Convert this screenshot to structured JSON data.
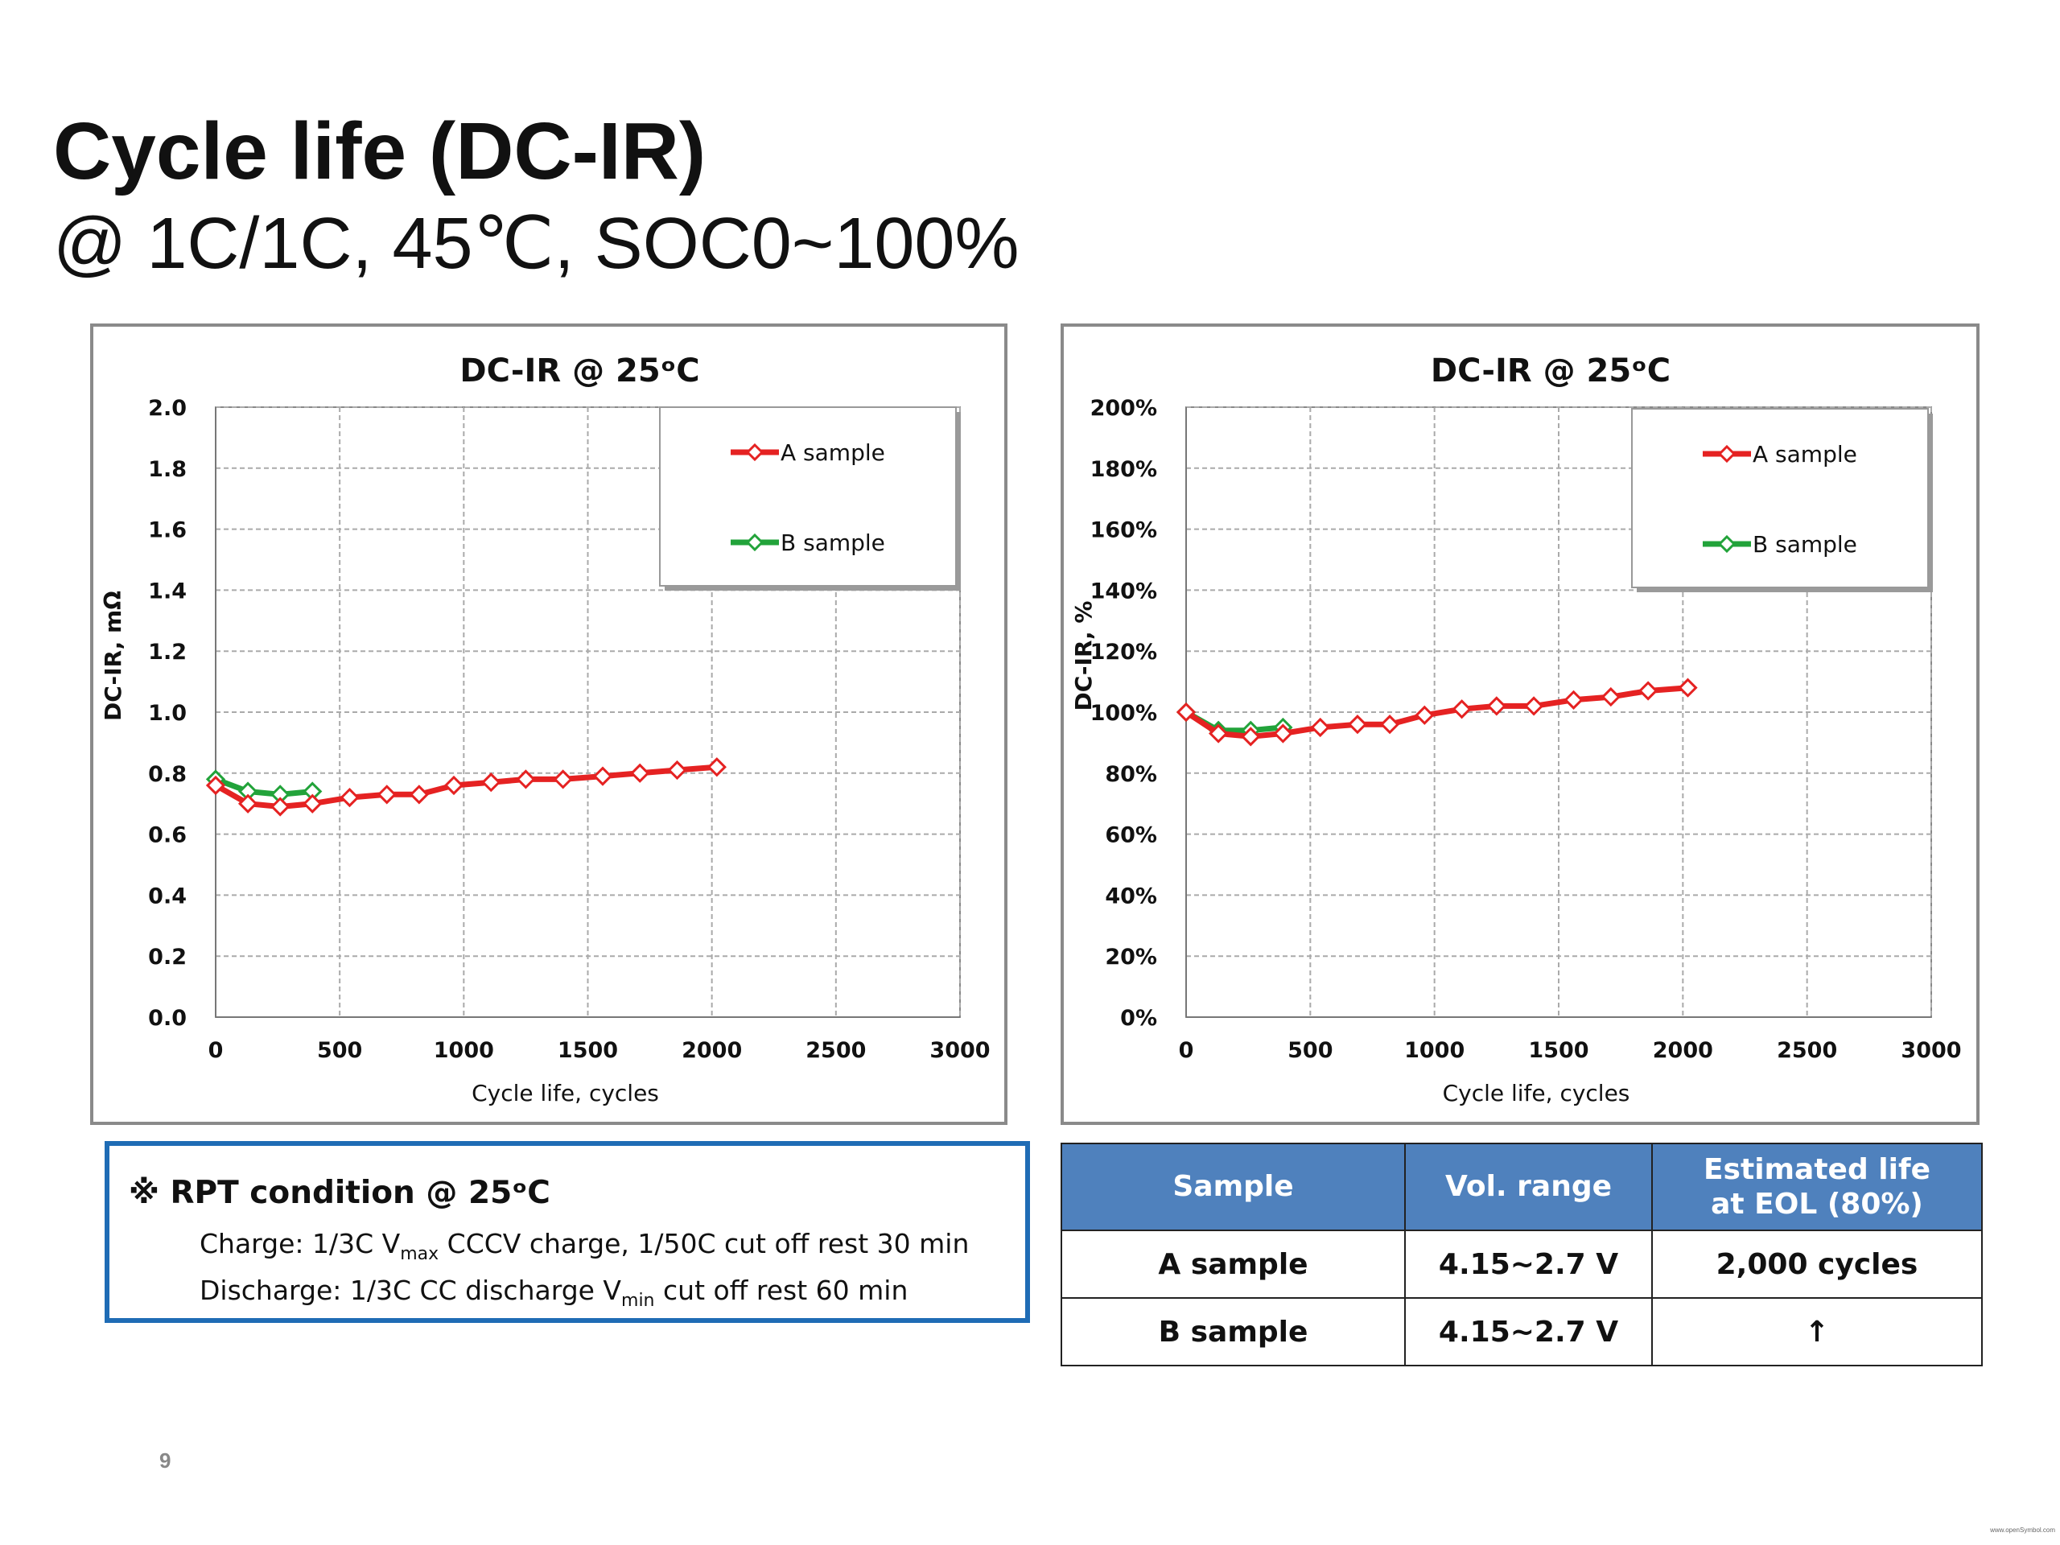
{
  "title": "Cycle life (DC-IR)",
  "subtitle": "@ 1C/1C, 45℃, SOC0~100%",
  "chart_data": [
    {
      "type": "line",
      "title": "DC-IR @ 25ᵒC",
      "xlabel": "Cycle life, cycles",
      "ylabel": "DC-IR, mΩ",
      "xlim": [
        0,
        3000
      ],
      "ylim": [
        0,
        2.0
      ],
      "xticks": [
        0,
        500,
        1000,
        1500,
        2000,
        2500,
        3000
      ],
      "xtick_labels": [
        "0",
        "500",
        "1000",
        "1500",
        "2000",
        "2500",
        "3000"
      ],
      "yticks": [
        0,
        0.2,
        0.4,
        0.6,
        0.8,
        1.0,
        1.2,
        1.4,
        1.6,
        1.8,
        2.0
      ],
      "ytick_labels": [
        "0.0",
        "0.2",
        "0.4",
        "0.6",
        "0.8",
        "1.0",
        "1.2",
        "1.4",
        "1.6",
        "1.8",
        "2.0"
      ],
      "grid": true,
      "legend": "top-right",
      "series": [
        {
          "name": "A sample",
          "color": "#e52222",
          "x": [
            0,
            130,
            260,
            390,
            540,
            690,
            820,
            960,
            1110,
            1250,
            1400,
            1560,
            1710,
            1860,
            2020
          ],
          "y": [
            0.76,
            0.7,
            0.69,
            0.7,
            0.72,
            0.73,
            0.73,
            0.76,
            0.77,
            0.78,
            0.78,
            0.79,
            0.8,
            0.81,
            0.82
          ]
        },
        {
          "name": "B sample",
          "color": "#22a33a",
          "x": [
            0,
            130,
            260,
            390
          ],
          "y": [
            0.78,
            0.74,
            0.73,
            0.74
          ]
        }
      ]
    },
    {
      "type": "line",
      "title": "DC-IR @ 25ᵒC",
      "xlabel": "Cycle life, cycles",
      "ylabel": "DC-IR, %",
      "xlim": [
        0,
        3000
      ],
      "ylim": [
        0,
        200
      ],
      "xticks": [
        0,
        500,
        1000,
        1500,
        2000,
        2500,
        3000
      ],
      "xtick_labels": [
        "0",
        "500",
        "1000",
        "1500",
        "2000",
        "2500",
        "3000"
      ],
      "yticks": [
        0,
        20,
        40,
        60,
        80,
        100,
        120,
        140,
        160,
        180,
        200
      ],
      "ytick_labels": [
        "0%",
        "20%",
        "40%",
        "60%",
        "80%",
        "100%",
        "120%",
        "140%",
        "160%",
        "180%",
        "200%"
      ],
      "grid": true,
      "legend": "top-right",
      "series": [
        {
          "name": "A sample",
          "color": "#e52222",
          "x": [
            0,
            130,
            260,
            390,
            540,
            690,
            820,
            960,
            1110,
            1250,
            1400,
            1560,
            1710,
            1860,
            2020
          ],
          "y": [
            100,
            93,
            92,
            93,
            95,
            96,
            96,
            99,
            101,
            102,
            102,
            104,
            105,
            107,
            108
          ]
        },
        {
          "name": "B sample",
          "color": "#22a33a",
          "x": [
            0,
            130,
            260,
            390
          ],
          "y": [
            100,
            94,
            94,
            95
          ]
        }
      ]
    }
  ],
  "rpt": {
    "title": "※ RPT condition @ 25ᵒC",
    "charge": {
      "prefix": "Charge: 1/3C V",
      "sub": "max",
      "suffix": " CCCV charge, 1/50C cut off rest 30 min"
    },
    "discharge": {
      "prefix": "Discharge: 1/3C CC discharge V",
      "sub": "min",
      "suffix": " cut off  rest 60 min"
    }
  },
  "table": {
    "headers": [
      "Sample",
      "Vol. range",
      "Estimated life",
      "at EOL (80%)"
    ],
    "rows": [
      [
        "A sample",
        "4.15~2.7 V",
        "2,000 cycles"
      ],
      [
        "B sample",
        "4.15~2.7 V",
        "↑"
      ]
    ]
  },
  "page_number": "9",
  "watermark": "www.openSymbol.com"
}
